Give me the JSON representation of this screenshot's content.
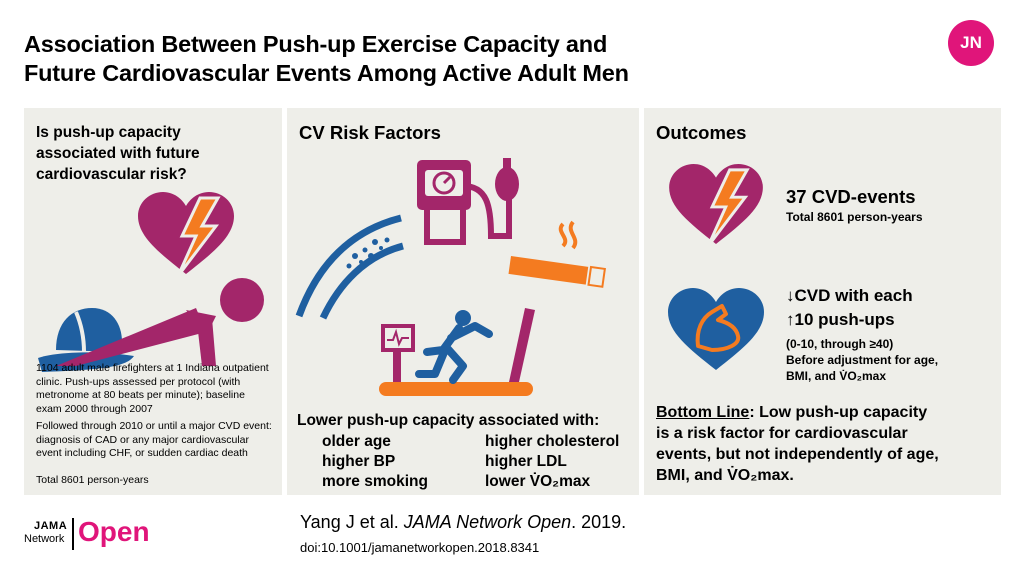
{
  "header": {
    "title_line1": "Association Between Push-up Exercise Capacity and",
    "title_line2": "Future Cardiovascular Events Among Active Adult Men",
    "logo": "JN"
  },
  "panel_left": {
    "question_line1": "Is push-up  capacity",
    "question_line2": "associated  with future",
    "question_line3": "cardiovascular  risk?",
    "icons": [
      "firefighter-helmet-icon",
      "broken-heart-icon",
      "push-up-person-icon"
    ],
    "methods_lines": [
      "1104 adult male firefighters at 1 Indiana outpatient",
      "clinic. Push-ups assessed per protocol (with",
      "metronome at 80 beats per minute); baseline",
      "exam 2000 through 2007"
    ],
    "followup_lines": [
      "Followed through 2010 or until a major CVD event:",
      "diagnosis of CAD or any major cardiovascular",
      "event including CHF, or sudden cardiac death"
    ],
    "total": "Total 8601 person-years"
  },
  "panel_middle": {
    "heading": "CV Risk Factors",
    "icons": [
      "blood-pressure-monitor-icon",
      "artery-plaque-icon",
      "cigarette-icon",
      "treadmill-runner-icon"
    ],
    "assoc_heading": "Lower push-up capacity  associated with:",
    "items_left": [
      "older age",
      "higher BP",
      "more smoking"
    ],
    "items_right": [
      "higher cholesterol",
      "higher LDL",
      "lower V̇O₂max"
    ]
  },
  "panel_right": {
    "heading": "Outcomes",
    "events_value": "37 CVD-events",
    "events_sub": "Total 8601 person-years",
    "cvd_line1": "↓CVD with  each",
    "cvd_line2": "↑10 push-ups",
    "cvd_range": "(0-10, through ≥40)",
    "cvd_adj1": "Before adjustment for age,",
    "cvd_adj2": "BMI, and V̇O₂max",
    "bottom_label": "Bottom Line",
    "bottom_line1": ": Low push-up capacity",
    "bottom_line2": "is a risk factor for cardiovascular",
    "bottom_line3": "events, but not independently of age,",
    "bottom_line4": "BMI, and V̇O₂max."
  },
  "footer": {
    "citation_prefix": "Yang J et al. ",
    "citation_journal": "JAMA Network Open",
    "citation_year": ". 2019.",
    "doi": "doi:10.1001/jamanetworkopen.2018.8341",
    "logo_top": "JAMA",
    "logo_bottom": "Network",
    "logo_word": "Open"
  },
  "colors": {
    "magenta": "#a3266a",
    "blue": "#1f5fa0",
    "orange": "#f47b20",
    "panel": "#eeeee9",
    "logo_pink": "#e0157a"
  }
}
